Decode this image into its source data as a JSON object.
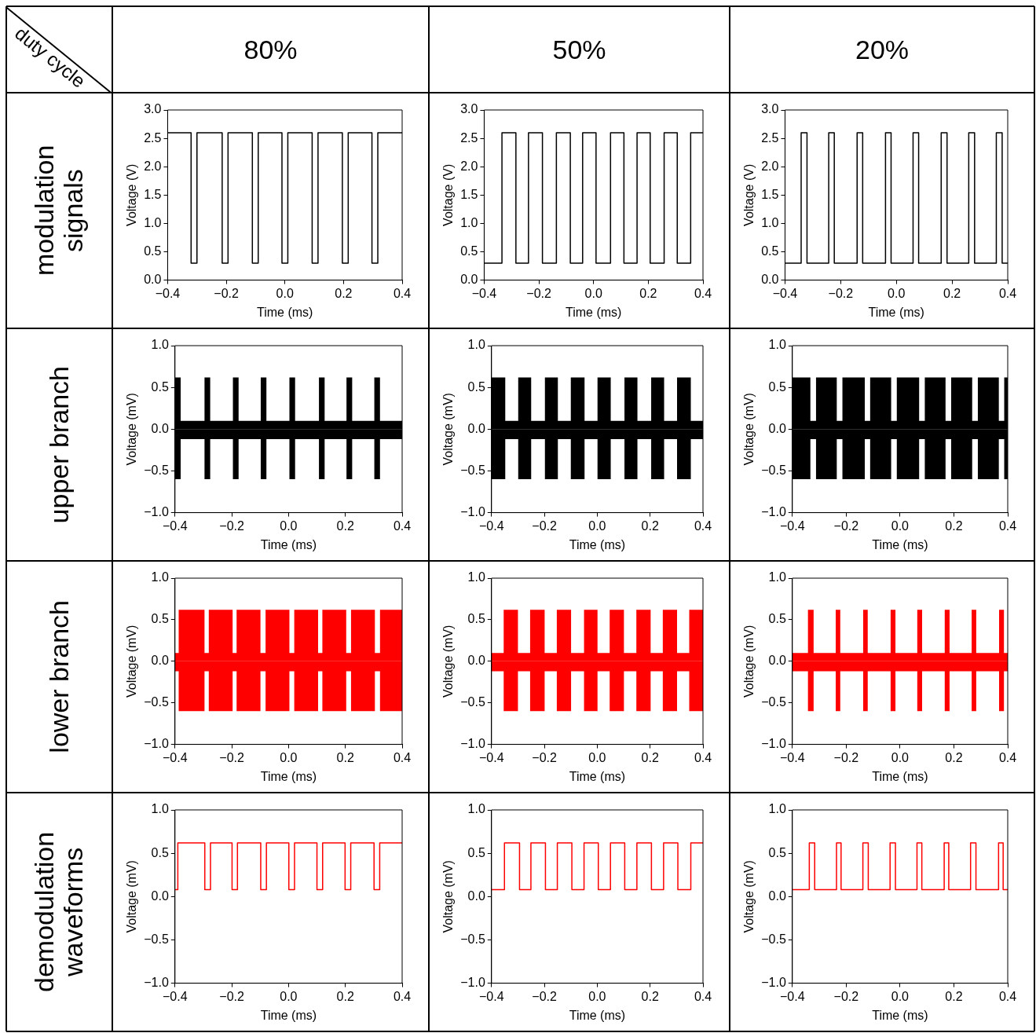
{
  "chart_data": [
    {
      "type": "other",
      "annotations": [
        "duty cycle",
        "80%",
        "50%",
        "20%",
        "modulation signals",
        "upper branch",
        "lower branch",
        "demodulation waveforms"
      ]
    },
    {
      "type": "step",
      "xlabel": "Time (ms)",
      "ylabel": "Voltage (V)",
      "xlim": [
        -0.4,
        0.4
      ],
      "ylim": [
        0,
        3
      ],
      "xticks": [
        {
          "value": -0.4,
          "label": "−0.4"
        },
        {
          "value": -0.2,
          "label": "−0.2"
        },
        {
          "value": 0,
          "label": "0.0"
        },
        {
          "value": 0.2,
          "label": "0.2"
        },
        {
          "value": 0.4,
          "label": "0.4"
        }
      ],
      "yticks": [
        {
          "value": 0,
          "label": "0.0"
        },
        0.5,
        {
          "value": 1,
          "label": "1.0"
        },
        1.5,
        {
          "value": 2,
          "label": "2.0"
        },
        2.5,
        {
          "value": 3,
          "label": "3.0"
        }
      ],
      "series": [
        {
          "color": "#000000",
          "x": [
            -0.4,
            -0.32,
            -0.3,
            -0.214,
            -0.194,
            -0.111,
            -0.091,
            -0.01,
            0.01,
            0.093,
            0.113,
            0.196,
            0.216,
            0.297,
            0.317,
            0.4
          ],
          "values": [
            2.6,
            0.3,
            2.6,
            0.3,
            2.6,
            0.3,
            2.6,
            0.3,
            2.6,
            0.3,
            2.6,
            0.3,
            2.6,
            0.3,
            2.6,
            2.6
          ]
        }
      ]
    },
    {
      "type": "step",
      "xlabel": "Time (ms)",
      "ylabel": "Voltage (V)",
      "xlim": [
        -0.4,
        0.4
      ],
      "ylim": [
        0,
        3
      ],
      "xticks": [
        {
          "value": -0.4,
          "label": "−0.4"
        },
        {
          "value": -0.2,
          "label": "−0.2"
        },
        {
          "value": 0,
          "label": "0.0"
        },
        {
          "value": 0.2,
          "label": "0.2"
        },
        {
          "value": 0.4,
          "label": "0.4"
        }
      ],
      "yticks": [
        {
          "value": 0,
          "label": "0.0"
        },
        0.5,
        {
          "value": 1,
          "label": "1.0"
        },
        1.5,
        {
          "value": 2,
          "label": "2.0"
        },
        2.5,
        {
          "value": 3,
          "label": "3.0"
        }
      ],
      "series": [
        {
          "color": "#000000",
          "x": [
            -0.4,
            -0.335,
            -0.284,
            -0.238,
            -0.187,
            -0.136,
            -0.085,
            -0.04,
            0.009,
            0.062,
            0.111,
            0.159,
            0.207,
            0.258,
            0.306,
            0.355,
            0.4
          ],
          "values": [
            0.3,
            2.6,
            0.3,
            2.6,
            0.3,
            2.6,
            0.3,
            2.6,
            0.3,
            2.6,
            0.3,
            2.6,
            0.3,
            2.6,
            0.3,
            2.6,
            2.6
          ]
        }
      ]
    },
    {
      "type": "step",
      "xlabel": "Time (ms)",
      "ylabel": "Voltage (V)",
      "xlim": [
        -0.4,
        0.4
      ],
      "ylim": [
        0,
        3
      ],
      "xticks": [
        {
          "value": -0.4,
          "label": "−0.4"
        },
        {
          "value": -0.2,
          "label": "−0.2"
        },
        {
          "value": 0,
          "label": "0.0"
        },
        {
          "value": 0.2,
          "label": "0.2"
        },
        {
          "value": 0.4,
          "label": "0.4"
        }
      ],
      "yticks": [
        {
          "value": 0,
          "label": "0.0"
        },
        0.5,
        {
          "value": 1,
          "label": "1.0"
        },
        1.5,
        {
          "value": 2,
          "label": "2.0"
        },
        2.5,
        {
          "value": 3,
          "label": "3.0"
        }
      ],
      "series": [
        {
          "color": "#000000",
          "x": [
            -0.4,
            -0.342,
            -0.321,
            -0.243,
            -0.223,
            -0.141,
            -0.121,
            -0.039,
            -0.019,
            0.06,
            0.08,
            0.161,
            0.182,
            0.26,
            0.281,
            0.359,
            0.38,
            0.4
          ],
          "values": [
            0.3,
            2.6,
            0.3,
            2.6,
            0.3,
            2.6,
            0.3,
            2.6,
            0.3,
            2.6,
            0.3,
            2.6,
            0.3,
            2.6,
            0.3,
            2.6,
            0.3,
            0.3
          ]
        }
      ]
    },
    {
      "type": "step",
      "xlabel": "Time (ms)",
      "ylabel": "Voltage (mV)",
      "xlim": [
        -0.4,
        0.4
      ],
      "ylim": [
        -1,
        1
      ],
      "xticks": [
        {
          "value": -0.4,
          "label": "−0.4"
        },
        {
          "value": -0.2,
          "label": "−0.2"
        },
        {
          "value": 0,
          "label": "0.0"
        },
        {
          "value": 0.2,
          "label": "0.2"
        },
        {
          "value": 0.4,
          "label": "0.4"
        }
      ],
      "yticks": [
        {
          "value": -1,
          "label": "−1.0"
        },
        {
          "value": -0.5,
          "label": "−0.5"
        },
        {
          "value": 0,
          "label": "0.0"
        },
        0.5,
        {
          "value": 1,
          "label": "1.0"
        }
      ],
      "series": [
        {
          "type": "area",
          "color": "#000000",
          "x": [
            -0.4,
            -0.38,
            -0.296,
            -0.276,
            -0.196,
            -0.176,
            -0.098,
            -0.078,
            0.003,
            0.023,
            0.107,
            0.127,
            0.204,
            0.224,
            0.302,
            0.322,
            0.4
          ],
          "values": [
            0.62,
            0.1,
            0.62,
            0.1,
            0.62,
            0.1,
            0.62,
            0.1,
            0.62,
            0.1,
            0.62,
            0.1,
            0.62,
            0.1,
            0.62,
            0.1,
            0.1
          ]
        },
        {
          "type": "area",
          "color": "#000000",
          "x": [
            -0.4,
            -0.38,
            -0.296,
            -0.276,
            -0.196,
            -0.176,
            -0.098,
            -0.078,
            0.003,
            0.023,
            0.107,
            0.127,
            0.204,
            0.224,
            0.302,
            0.322,
            0.4
          ],
          "values": [
            -0.6,
            -0.12,
            -0.6,
            -0.12,
            -0.6,
            -0.12,
            -0.6,
            -0.12,
            -0.6,
            -0.12,
            -0.6,
            -0.12,
            -0.6,
            -0.12,
            -0.6,
            -0.12,
            -0.12
          ]
        }
      ]
    },
    {
      "type": "step",
      "xlabel": "Time (ms)",
      "ylabel": "Voltage (mV)",
      "xlim": [
        -0.4,
        0.4
      ],
      "ylim": [
        -1,
        1
      ],
      "xticks": [
        {
          "value": -0.4,
          "label": "−0.4"
        },
        {
          "value": -0.2,
          "label": "−0.2"
        },
        {
          "value": 0,
          "label": "0.0"
        },
        {
          "value": 0.2,
          "label": "0.2"
        },
        {
          "value": 0.4,
          "label": "0.4"
        }
      ],
      "yticks": [
        {
          "value": -1,
          "label": "−1.0"
        },
        {
          "value": -0.5,
          "label": "−0.5"
        },
        {
          "value": 0,
          "label": "0.0"
        },
        0.5,
        {
          "value": 1,
          "label": "1.0"
        }
      ],
      "series": [
        {
          "type": "area",
          "color": "#000000",
          "x": [
            -0.4,
            -0.348,
            -0.299,
            -0.25,
            -0.198,
            -0.149,
            -0.1,
            -0.048,
            0.001,
            0.051,
            0.103,
            0.152,
            0.204,
            0.253,
            0.302,
            0.354,
            0.4
          ],
          "values": [
            0.62,
            0.1,
            0.62,
            0.1,
            0.62,
            0.1,
            0.62,
            0.1,
            0.62,
            0.1,
            0.62,
            0.1,
            0.62,
            0.1,
            0.62,
            0.1,
            0.1
          ]
        },
        {
          "type": "area",
          "color": "#000000",
          "x": [
            -0.4,
            -0.348,
            -0.299,
            -0.25,
            -0.198,
            -0.149,
            -0.1,
            -0.048,
            0.001,
            0.051,
            0.103,
            0.152,
            0.204,
            0.253,
            0.302,
            0.354,
            0.4
          ],
          "values": [
            -0.6,
            -0.12,
            -0.6,
            -0.12,
            -0.6,
            -0.12,
            -0.6,
            -0.12,
            -0.6,
            -0.12,
            -0.6,
            -0.12,
            -0.6,
            -0.12,
            -0.6,
            -0.12,
            -0.12
          ]
        }
      ]
    },
    {
      "type": "step",
      "xlabel": "Time (ms)",
      "ylabel": "Voltage (mV)",
      "xlim": [
        -0.4,
        0.4
      ],
      "ylim": [
        -1,
        1
      ],
      "xticks": [
        {
          "value": -0.4,
          "label": "−0.4"
        },
        {
          "value": -0.2,
          "label": "−0.2"
        },
        {
          "value": 0,
          "label": "0.0"
        },
        {
          "value": 0.2,
          "label": "0.2"
        },
        {
          "value": 0.4,
          "label": "0.4"
        }
      ],
      "yticks": [
        {
          "value": -1,
          "label": "−1.0"
        },
        {
          "value": -0.5,
          "label": "−0.5"
        },
        {
          "value": 0,
          "label": "0.0"
        },
        0.5,
        {
          "value": 1,
          "label": "1.0"
        }
      ],
      "series": [
        {
          "type": "area",
          "color": "#000000",
          "x": [
            -0.4,
            -0.333,
            -0.312,
            -0.235,
            -0.214,
            -0.131,
            -0.111,
            -0.033,
            -0.012,
            0.071,
            0.092,
            0.169,
            0.19,
            0.268,
            0.289,
            0.367,
            0.387,
            0.4
          ],
          "values": [
            0.62,
            0.1,
            0.62,
            0.1,
            0.62,
            0.1,
            0.62,
            0.1,
            0.62,
            0.1,
            0.62,
            0.1,
            0.62,
            0.1,
            0.62,
            0.1,
            0.62,
            0.62
          ]
        },
        {
          "type": "area",
          "color": "#000000",
          "x": [
            -0.4,
            -0.333,
            -0.312,
            -0.235,
            -0.214,
            -0.131,
            -0.111,
            -0.033,
            -0.012,
            0.071,
            0.092,
            0.169,
            0.19,
            0.268,
            0.289,
            0.367,
            0.387,
            0.4
          ],
          "values": [
            -0.6,
            -0.12,
            -0.6,
            -0.12,
            -0.6,
            -0.12,
            -0.6,
            -0.12,
            -0.6,
            -0.12,
            -0.6,
            -0.12,
            -0.6,
            -0.12,
            -0.6,
            -0.12,
            -0.6,
            -0.6
          ]
        }
      ]
    },
    {
      "type": "step",
      "xlabel": "Time (ms)",
      "ylabel": "Voltage (mV)",
      "xlim": [
        -0.4,
        0.4
      ],
      "ylim": [
        -1,
        1
      ],
      "xticks": [
        {
          "value": -0.4,
          "label": "−0.4"
        },
        {
          "value": -0.2,
          "label": "−0.2"
        },
        {
          "value": 0,
          "label": "0.0"
        },
        {
          "value": 0.2,
          "label": "0.2"
        },
        {
          "value": 0.4,
          "label": "0.4"
        }
      ],
      "yticks": [
        {
          "value": -1,
          "label": "−1.0"
        },
        {
          "value": -0.5,
          "label": "−0.5"
        },
        {
          "value": 0,
          "label": "0.0"
        },
        0.5,
        {
          "value": 1,
          "label": "1.0"
        }
      ],
      "series": [
        {
          "type": "area",
          "color": "#ff0000",
          "x": [
            -0.4,
            -0.387,
            -0.296,
            -0.281,
            -0.197,
            -0.183,
            -0.099,
            -0.081,
            0.003,
            0.02,
            0.104,
            0.119,
            0.203,
            0.22,
            0.304,
            0.322,
            0.4
          ],
          "values": [
            0.1,
            0.62,
            0.1,
            0.62,
            0.1,
            0.62,
            0.1,
            0.62,
            0.1,
            0.62,
            0.1,
            0.62,
            0.1,
            0.62,
            0.1,
            0.62,
            0.62
          ]
        },
        {
          "type": "area",
          "color": "#ff0000",
          "x": [
            -0.4,
            -0.387,
            -0.296,
            -0.281,
            -0.197,
            -0.183,
            -0.099,
            -0.081,
            0.003,
            0.02,
            0.104,
            0.119,
            0.203,
            0.22,
            0.304,
            0.322,
            0.4
          ],
          "values": [
            -0.12,
            -0.6,
            -0.12,
            -0.6,
            -0.12,
            -0.6,
            -0.12,
            -0.6,
            -0.12,
            -0.6,
            -0.12,
            -0.6,
            -0.12,
            -0.6,
            -0.12,
            -0.6,
            -0.6
          ]
        }
      ]
    },
    {
      "type": "step",
      "xlabel": "Time (ms)",
      "ylabel": "Voltage (mV)",
      "xlim": [
        -0.4,
        0.4
      ],
      "ylim": [
        -1,
        1
      ],
      "xticks": [
        {
          "value": -0.4,
          "label": "−0.4"
        },
        {
          "value": -0.2,
          "label": "−0.2"
        },
        {
          "value": 0,
          "label": "0.0"
        },
        {
          "value": 0.2,
          "label": "0.2"
        },
        {
          "value": 0.4,
          "label": "0.4"
        }
      ],
      "yticks": [
        {
          "value": -1,
          "label": "−1.0"
        },
        {
          "value": -0.5,
          "label": "−0.5"
        },
        {
          "value": 0,
          "label": "0.0"
        },
        0.5,
        {
          "value": 1,
          "label": "1.0"
        }
      ],
      "series": [
        {
          "type": "area",
          "color": "#ff0000",
          "x": [
            -0.4,
            -0.354,
            -0.3,
            -0.254,
            -0.199,
            -0.153,
            -0.099,
            -0.05,
            0.001,
            0.047,
            0.101,
            0.148,
            0.202,
            0.248,
            0.302,
            0.348,
            0.4
          ],
          "values": [
            0.1,
            0.62,
            0.1,
            0.62,
            0.1,
            0.62,
            0.1,
            0.62,
            0.1,
            0.62,
            0.1,
            0.62,
            0.1,
            0.62,
            0.1,
            0.62,
            0.62
          ]
        },
        {
          "type": "area",
          "color": "#ff0000",
          "x": [
            -0.4,
            -0.354,
            -0.3,
            -0.254,
            -0.199,
            -0.153,
            -0.099,
            -0.05,
            0.001,
            0.047,
            0.101,
            0.148,
            0.202,
            0.248,
            0.302,
            0.348,
            0.4
          ],
          "values": [
            -0.12,
            -0.6,
            -0.12,
            -0.6,
            -0.12,
            -0.6,
            -0.12,
            -0.6,
            -0.12,
            -0.6,
            -0.12,
            -0.6,
            -0.12,
            -0.6,
            -0.12,
            -0.6,
            -0.6
          ]
        }
      ]
    },
    {
      "type": "step",
      "xlabel": "Time (ms)",
      "ylabel": "Voltage (mV)",
      "xlim": [
        -0.4,
        0.4
      ],
      "ylim": [
        -1,
        1
      ],
      "xticks": [
        {
          "value": -0.4,
          "label": "−0.4"
        },
        {
          "value": -0.2,
          "label": "−0.2"
        },
        {
          "value": 0,
          "label": "0.0"
        },
        {
          "value": 0.2,
          "label": "0.2"
        },
        {
          "value": 0.4,
          "label": "0.4"
        }
      ],
      "yticks": [
        {
          "value": -1,
          "label": "−1.0"
        },
        {
          "value": -0.5,
          "label": "−0.5"
        },
        {
          "value": 0,
          "label": "0.0"
        },
        0.5,
        {
          "value": 1,
          "label": "1.0"
        }
      ],
      "series": [
        {
          "type": "area",
          "color": "#ff0000",
          "x": [
            -0.4,
            -0.342,
            -0.321,
            -0.239,
            -0.222,
            -0.137,
            -0.12,
            -0.035,
            -0.017,
            0.064,
            0.082,
            0.166,
            0.184,
            0.266,
            0.283,
            0.368,
            0.386,
            0.4
          ],
          "values": [
            0.1,
            0.62,
            0.1,
            0.62,
            0.1,
            0.62,
            0.1,
            0.62,
            0.1,
            0.62,
            0.1,
            0.62,
            0.1,
            0.62,
            0.1,
            0.62,
            0.1,
            0.1
          ]
        },
        {
          "type": "area",
          "color": "#ff0000",
          "x": [
            -0.4,
            -0.342,
            -0.321,
            -0.239,
            -0.222,
            -0.137,
            -0.12,
            -0.035,
            -0.017,
            0.064,
            0.082,
            0.166,
            0.184,
            0.266,
            0.283,
            0.368,
            0.386,
            0.4
          ],
          "values": [
            -0.12,
            -0.6,
            -0.12,
            -0.6,
            -0.12,
            -0.6,
            -0.12,
            -0.6,
            -0.12,
            -0.6,
            -0.12,
            -0.6,
            -0.12,
            -0.6,
            -0.12,
            -0.6,
            -0.12,
            -0.12
          ]
        }
      ]
    },
    {
      "type": "step",
      "xlabel": "Time (ms)",
      "ylabel": "Voltage (mV)",
      "xlim": [
        -0.4,
        0.4
      ],
      "ylim": [
        -1,
        1
      ],
      "xticks": [
        {
          "value": -0.4,
          "label": "−0.4"
        },
        {
          "value": -0.2,
          "label": "−0.2"
        },
        {
          "value": 0,
          "label": "0.0"
        },
        {
          "value": 0.2,
          "label": "0.2"
        },
        {
          "value": 0.4,
          "label": "0.4"
        }
      ],
      "yticks": [
        {
          "value": -1,
          "label": "−1.0"
        },
        {
          "value": -0.5,
          "label": "−0.5"
        },
        {
          "value": 0,
          "label": "0.0"
        },
        0.5,
        {
          "value": 1,
          "label": "1.0"
        }
      ],
      "series": [
        {
          "color": "#ff0000",
          "x": [
            -0.4,
            -0.39,
            -0.295,
            -0.275,
            -0.199,
            -0.18,
            -0.098,
            -0.078,
            0.001,
            0.021,
            0.1,
            0.12,
            0.199,
            0.219,
            0.301,
            0.321,
            0.4
          ],
          "values": [
            0.08,
            0.62,
            0.08,
            0.62,
            0.08,
            0.62,
            0.08,
            0.62,
            0.08,
            0.62,
            0.08,
            0.62,
            0.08,
            0.62,
            0.08,
            0.62,
            0.62
          ]
        }
      ]
    },
    {
      "type": "step",
      "xlabel": "Time (ms)",
      "ylabel": "Voltage (mV)",
      "xlim": [
        -0.4,
        0.4
      ],
      "ylim": [
        -1,
        1
      ],
      "xticks": [
        {
          "value": -0.4,
          "label": "−0.4"
        },
        {
          "value": -0.2,
          "label": "−0.2"
        },
        {
          "value": 0,
          "label": "0.0"
        },
        {
          "value": 0.2,
          "label": "0.2"
        },
        {
          "value": 0.4,
          "label": "0.4"
        }
      ],
      "yticks": [
        {
          "value": -1,
          "label": "−1.0"
        },
        {
          "value": -0.5,
          "label": "−0.5"
        },
        {
          "value": 0,
          "label": "0.0"
        },
        0.5,
        {
          "value": 1,
          "label": "1.0"
        }
      ],
      "series": [
        {
          "color": "#ff0000",
          "x": [
            -0.4,
            -0.351,
            -0.294,
            -0.251,
            -0.196,
            -0.151,
            -0.096,
            -0.05,
            0.004,
            0.05,
            0.104,
            0.15,
            0.205,
            0.251,
            0.305,
            0.354,
            0.4
          ],
          "values": [
            0.08,
            0.62,
            0.08,
            0.62,
            0.08,
            0.62,
            0.08,
            0.62,
            0.08,
            0.62,
            0.08,
            0.62,
            0.08,
            0.62,
            0.08,
            0.62,
            0.62
          ]
        }
      ]
    },
    {
      "type": "step",
      "xlabel": "Time (ms)",
      "ylabel": "Voltage (mV)",
      "xlim": [
        -0.4,
        0.4
      ],
      "ylim": [
        -1,
        1
      ],
      "xticks": [
        {
          "value": -0.4,
          "label": "−0.4"
        },
        {
          "value": -0.2,
          "label": "−0.2"
        },
        {
          "value": 0,
          "label": "0.0"
        },
        {
          "value": 0.2,
          "label": "0.2"
        },
        {
          "value": 0.4,
          "label": "0.4"
        }
      ],
      "yticks": [
        {
          "value": -1,
          "label": "−1.0"
        },
        {
          "value": -0.5,
          "label": "−0.5"
        },
        {
          "value": 0,
          "label": "0.0"
        },
        0.5,
        {
          "value": 1,
          "label": "1.0"
        }
      ],
      "series": [
        {
          "color": "#ff0000",
          "x": [
            -0.4,
            -0.337,
            -0.317,
            -0.236,
            -0.219,
            -0.138,
            -0.118,
            -0.037,
            -0.017,
            0.063,
            0.081,
            0.164,
            0.181,
            0.262,
            0.282,
            0.366,
            0.383,
            0.4
          ],
          "values": [
            0.08,
            0.62,
            0.08,
            0.62,
            0.08,
            0.62,
            0.08,
            0.62,
            0.08,
            0.62,
            0.08,
            0.62,
            0.08,
            0.62,
            0.08,
            0.62,
            0.08,
            0.08
          ]
        }
      ]
    }
  ]
}
